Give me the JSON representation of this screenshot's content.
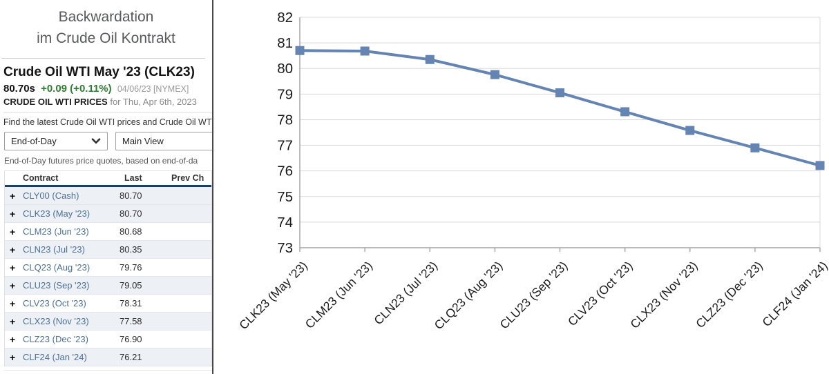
{
  "panel": {
    "title_line1": "Backwardation",
    "title_line2": "im Crude Oil Kontrakt",
    "quote": {
      "symbol_title": "Crude Oil WTI May '23 (CLK23)",
      "last_price": "80.70s",
      "change": "+0.09 (+0.11%)",
      "date_exchange": "04/06/23 [NYMEX]",
      "prices_label": "CRUDE OIL WTI PRICES",
      "prices_date": "for Thu, Apr 6th, 2023",
      "find_text": "Find the latest Crude Oil WTI prices and Crude Oil WTI"
    },
    "controls": {
      "period_select": "End-of-Day",
      "view_select": "Main View",
      "caption": "End-of-Day futures price quotes, based on end-of-da"
    },
    "table": {
      "headers": [
        "Contract",
        "Last",
        "Prev Ch"
      ],
      "rows": [
        {
          "contract": "CLY00 (Cash)",
          "last": "80.70",
          "shaded": true
        },
        {
          "contract": "CLK23 (May '23)",
          "last": "80.70",
          "shaded": true
        },
        {
          "contract": "CLM23 (Jun '23)",
          "last": "80.68",
          "shaded": false
        },
        {
          "contract": "CLN23 (Jul '23)",
          "last": "80.35",
          "shaded": true
        },
        {
          "contract": "CLQ23 (Aug '23)",
          "last": "79.76",
          "shaded": false
        },
        {
          "contract": "CLU23 (Sep '23)",
          "last": "79.05",
          "shaded": true
        },
        {
          "contract": "CLV23 (Oct '23)",
          "last": "78.31",
          "shaded": false
        },
        {
          "contract": "CLX23 (Nov '23)",
          "last": "77.58",
          "shaded": true
        },
        {
          "contract": "CLZ23 (Dec '23)",
          "last": "76.90",
          "shaded": false
        },
        {
          "contract": "CLF24 (Jan '24)",
          "last": "76.21",
          "shaded": true
        }
      ],
      "plus_glyph": "+"
    }
  },
  "chart_data": {
    "type": "line",
    "title": "",
    "categories": [
      "CLK23 (May '23)",
      "CLM23 (Jun '23)",
      "CLN23 (Jul '23)",
      "CLQ23 (Aug '23)",
      "CLU23 (Sep '23)",
      "CLV23 (Oct '23)",
      "CLX23 (Nov '23)",
      "CLZ23 (Dec '23)",
      "CLF24 (Jan '24)"
    ],
    "values": [
      80.7,
      80.68,
      80.35,
      79.76,
      79.05,
      78.31,
      77.58,
      76.9,
      76.21
    ],
    "xlabel": "",
    "ylabel": "",
    "ylim": [
      73,
      82
    ],
    "ytick_step": 1,
    "grid": true,
    "legend": "none",
    "marker": "square",
    "line_color": "#6484b4"
  },
  "colors": {
    "link_blue": "#4a7097",
    "header_navy": "#203d63",
    "change_green": "#2e7d32",
    "row_shaded": "#edf0f4",
    "grid_gray": "#d8d8d8",
    "axis_gray": "#a3a3a3"
  }
}
